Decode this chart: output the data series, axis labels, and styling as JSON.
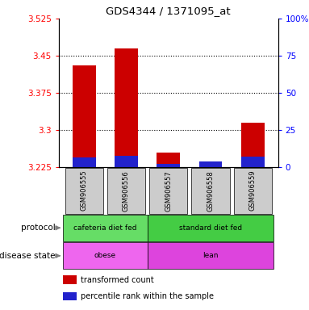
{
  "title": "GDS4344 / 1371095_at",
  "samples": [
    "GSM906555",
    "GSM906556",
    "GSM906557",
    "GSM906558",
    "GSM906559"
  ],
  "red_values": [
    3.43,
    3.465,
    3.255,
    3.225,
    3.315
  ],
  "blue_values": [
    3.245,
    3.248,
    3.232,
    3.237,
    3.246
  ],
  "ylim_left": [
    3.225,
    3.525
  ],
  "ylim_right": [
    0,
    100
  ],
  "yticks_left": [
    3.225,
    3.3,
    3.375,
    3.45,
    3.525
  ],
  "yticks_right": [
    0,
    25,
    50,
    75,
    100
  ],
  "ytick_labels_right": [
    "0",
    "25",
    "50",
    "75",
    "100%"
  ],
  "base": 3.225,
  "dotted_lines": [
    3.3,
    3.375,
    3.45
  ],
  "protocol_grp1_label": "cafeteria diet fed",
  "protocol_grp1_color": "#66DD66",
  "protocol_grp1_n": 2,
  "protocol_grp2_label": "standard diet fed",
  "protocol_grp2_color": "#44CC44",
  "protocol_grp2_n": 3,
  "disease_grp1_label": "obese",
  "disease_grp1_color": "#EE66EE",
  "disease_grp1_n": 2,
  "disease_grp2_label": "lean",
  "disease_grp2_color": "#DD44DD",
  "disease_grp2_n": 3,
  "red_color": "#CC0000",
  "blue_color": "#2222CC",
  "bar_width": 0.55,
  "sample_box_color": "#CCCCCC",
  "legend_items": [
    {
      "color": "#CC0000",
      "label": "transformed count"
    },
    {
      "color": "#2222CC",
      "label": "percentile rank within the sample"
    }
  ]
}
